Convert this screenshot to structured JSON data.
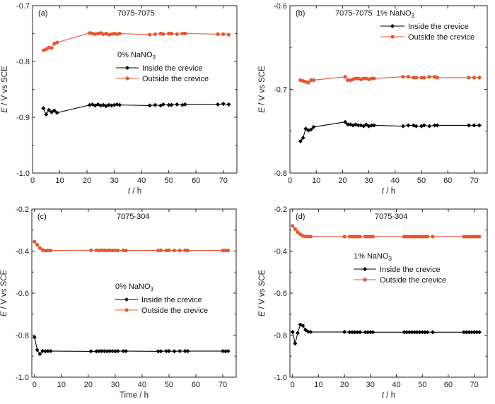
{
  "panels": [
    {
      "label": "(a)",
      "system": "7075-7075",
      "electrolyte": "0% NaNO",
      "electrolyte_sub": "3",
      "ylabel": "E / V vs SCE",
      "ylabel_ital": "E",
      "ylabel_rest": " / V vs SCE",
      "xlabel": "t / h",
      "xlabel_ital": "t",
      "xlabel_rest": " / h",
      "legend": [
        "Inside the crevice",
        "Outside the crevice"
      ]
    },
    {
      "label": "(b)",
      "system": "7075-7075",
      "electrolyte": "1% NaNO",
      "electrolyte_sub": "3",
      "ylabel": "E / V vs SCE",
      "ylabel_ital": "E",
      "ylabel_rest": " / V vs SCE",
      "xlabel": "t / h",
      "xlabel_ital": "t",
      "xlabel_rest": " / h",
      "legend": [
        "Inside the crevice",
        "Outside the crevice"
      ]
    },
    {
      "label": "(c)",
      "system": "7075-304",
      "electrolyte": "0% NaNO",
      "electrolyte_sub": "3",
      "ylabel": "E / V vs SCE",
      "ylabel_ital": "E",
      "ylabel_rest": " / V vs SCE",
      "xlabel": "Time / h",
      "xlabel_ital": "",
      "xlabel_rest": "Time / h",
      "legend": [
        "Inside the crevice",
        "Outside the crevice"
      ]
    },
    {
      "label": "(d)",
      "system": "7075-304",
      "electrolyte": "1% NaNO",
      "electrolyte_sub": "3",
      "ylabel": "E / V vs SCE",
      "ylabel_ital": "E",
      "ylabel_rest": " / V vs SCE",
      "xlabel": "t / h",
      "xlabel_ital": "t",
      "xlabel_rest": " / h",
      "legend": [
        "Inside the crevice",
        "Outside the crevice"
      ]
    }
  ],
  "colors": {
    "inside": "#000000",
    "outside": "#e8552a",
    "axis": "#222222"
  },
  "chart_data": [
    {
      "type": "line",
      "title": "(a) 7075-7075",
      "xlabel": "t / h",
      "ylabel": "E / V vs SCE",
      "xlim": [
        0,
        75
      ],
      "ylim": [
        -1.0,
        -0.7
      ],
      "xticks": [
        0,
        10,
        20,
        30,
        40,
        50,
        60,
        70
      ],
      "yticks": [
        -1.0,
        -0.9,
        -0.8,
        -0.7
      ],
      "series": [
        {
          "name": "Inside the crevice",
          "marker": "diamond",
          "x": [
            4,
            5,
            6,
            7,
            8,
            9,
            21,
            22,
            23,
            24,
            25,
            26,
            27,
            28,
            29,
            30,
            31,
            32,
            43,
            45,
            47,
            48,
            50,
            51,
            53,
            55,
            56,
            68,
            70,
            72
          ],
          "y": [
            -0.884,
            -0.895,
            -0.887,
            -0.891,
            -0.888,
            -0.892,
            -0.878,
            -0.877,
            -0.879,
            -0.877,
            -0.879,
            -0.878,
            -0.88,
            -0.878,
            -0.879,
            -0.878,
            -0.877,
            -0.878,
            -0.879,
            -0.878,
            -0.879,
            -0.877,
            -0.878,
            -0.878,
            -0.877,
            -0.878,
            -0.877,
            -0.877,
            -0.876,
            -0.877
          ]
        },
        {
          "name": "Outside the crevice",
          "marker": "circle",
          "x": [
            4,
            5,
            6,
            7,
            8,
            9,
            21,
            22,
            23,
            24,
            25,
            26,
            27,
            28,
            29,
            30,
            31,
            32,
            43,
            45,
            47,
            48,
            50,
            51,
            53,
            55,
            56,
            68,
            70,
            72
          ],
          "y": [
            -0.78,
            -0.778,
            -0.775,
            -0.776,
            -0.768,
            -0.766,
            -0.749,
            -0.75,
            -0.751,
            -0.75,
            -0.749,
            -0.751,
            -0.75,
            -0.752,
            -0.751,
            -0.75,
            -0.751,
            -0.75,
            -0.752,
            -0.751,
            -0.75,
            -0.751,
            -0.75,
            -0.75,
            -0.751,
            -0.75,
            -0.75,
            -0.751,
            -0.751,
            -0.752
          ]
        }
      ]
    },
    {
      "type": "line",
      "title": "(b) 7075-7075",
      "xlabel": "t / h",
      "ylabel": "E / V vs SCE",
      "xlim": [
        0,
        75
      ],
      "ylim": [
        -0.8,
        -0.6
      ],
      "xticks": [
        0,
        10,
        20,
        30,
        40,
        50,
        60,
        70
      ],
      "yticks": [
        -0.8,
        -0.7,
        -0.6
      ],
      "series": [
        {
          "name": "Inside the crevice",
          "marker": "diamond",
          "x": [
            4,
            5,
            6,
            7,
            8,
            9,
            21,
            22,
            23,
            24,
            25,
            26,
            27,
            28,
            29,
            30,
            31,
            32,
            43,
            45,
            47,
            48,
            50,
            51,
            53,
            55,
            56,
            68,
            70,
            72
          ],
          "y": [
            -0.762,
            -0.758,
            -0.747,
            -0.749,
            -0.748,
            -0.745,
            -0.739,
            -0.742,
            -0.742,
            -0.743,
            -0.742,
            -0.743,
            -0.743,
            -0.744,
            -0.742,
            -0.744,
            -0.743,
            -0.743,
            -0.744,
            -0.743,
            -0.743,
            -0.744,
            -0.744,
            -0.743,
            -0.744,
            -0.743,
            -0.743,
            -0.743,
            -0.743,
            -0.743
          ]
        },
        {
          "name": "Outside the crevice",
          "marker": "circle",
          "x": [
            4,
            5,
            6,
            7,
            8,
            9,
            21,
            22,
            23,
            24,
            25,
            26,
            27,
            28,
            29,
            30,
            31,
            32,
            43,
            45,
            47,
            48,
            50,
            51,
            53,
            55,
            56,
            68,
            70,
            72
          ],
          "y": [
            -0.689,
            -0.69,
            -0.691,
            -0.692,
            -0.689,
            -0.689,
            -0.685,
            -0.689,
            -0.689,
            -0.688,
            -0.687,
            -0.687,
            -0.688,
            -0.687,
            -0.687,
            -0.688,
            -0.687,
            -0.687,
            -0.685,
            -0.685,
            -0.686,
            -0.686,
            -0.686,
            -0.686,
            -0.685,
            -0.685,
            -0.686,
            -0.686,
            -0.686,
            -0.686
          ]
        }
      ]
    },
    {
      "type": "line",
      "title": "(c) 7075-304",
      "xlabel": "Time / h",
      "ylabel": "E / V vs SCE",
      "xlim": [
        -1,
        75
      ],
      "ylim": [
        -1.0,
        -0.2
      ],
      "xticks": [
        0,
        10,
        20,
        30,
        40,
        50,
        60,
        70
      ],
      "yticks": [
        -1.0,
        -0.8,
        -0.6,
        -0.4,
        -0.2
      ],
      "series": [
        {
          "name": "Inside the crevice",
          "marker": "diamond",
          "x": [
            0,
            1,
            2,
            3,
            4,
            5,
            6,
            21,
            23,
            24,
            25,
            26,
            27,
            28,
            29,
            30,
            31,
            33,
            34,
            46,
            47,
            49,
            50,
            52,
            54,
            56,
            57,
            70,
            71,
            72
          ],
          "y": [
            -0.81,
            -0.87,
            -0.89,
            -0.875,
            -0.877,
            -0.876,
            -0.876,
            -0.877,
            -0.877,
            -0.876,
            -0.876,
            -0.876,
            -0.877,
            -0.876,
            -0.876,
            -0.877,
            -0.876,
            -0.876,
            -0.876,
            -0.877,
            -0.877,
            -0.876,
            -0.876,
            -0.877,
            -0.876,
            -0.876,
            -0.876,
            -0.876,
            -0.877,
            -0.876
          ]
        },
        {
          "name": "Outside the crevice",
          "marker": "circle",
          "x": [
            0,
            1,
            2,
            3,
            4,
            5,
            6,
            21,
            23,
            24,
            25,
            26,
            27,
            28,
            29,
            30,
            31,
            33,
            34,
            46,
            47,
            49,
            50,
            52,
            54,
            56,
            57,
            70,
            71,
            72
          ],
          "y": [
            -0.355,
            -0.37,
            -0.385,
            -0.395,
            -0.398,
            -0.397,
            -0.397,
            -0.396,
            -0.396,
            -0.397,
            -0.396,
            -0.396,
            -0.397,
            -0.396,
            -0.397,
            -0.396,
            -0.397,
            -0.396,
            -0.397,
            -0.397,
            -0.396,
            -0.397,
            -0.396,
            -0.397,
            -0.397,
            -0.396,
            -0.397,
            -0.397,
            -0.397,
            -0.397
          ]
        }
      ]
    },
    {
      "type": "line",
      "title": "(d) 7075-304",
      "xlabel": "t / h",
      "ylabel": "E / V vs SCE",
      "xlim": [
        -1,
        75
      ],
      "ylim": [
        -1.0,
        -0.2
      ],
      "xticks": [
        0,
        10,
        20,
        30,
        40,
        50,
        60,
        70
      ],
      "yticks": [
        -1.0,
        -0.8,
        -0.6,
        -0.4,
        -0.2
      ],
      "series": [
        {
          "name": "Inside the crevice",
          "marker": "diamond",
          "x": [
            0,
            1,
            2,
            3,
            4,
            5,
            6,
            7,
            20,
            22,
            23,
            24,
            25,
            26,
            28,
            29,
            30,
            31,
            43,
            44,
            45,
            46,
            47,
            48,
            49,
            50,
            51,
            52,
            54,
            66,
            67,
            68,
            69,
            70,
            71,
            72
          ],
          "y": [
            -0.785,
            -0.84,
            -0.79,
            -0.75,
            -0.755,
            -0.775,
            -0.783,
            -0.785,
            -0.785,
            -0.786,
            -0.786,
            -0.786,
            -0.786,
            -0.786,
            -0.786,
            -0.786,
            -0.786,
            -0.786,
            -0.786,
            -0.786,
            -0.786,
            -0.786,
            -0.786,
            -0.786,
            -0.786,
            -0.786,
            -0.786,
            -0.786,
            -0.786,
            -0.786,
            -0.786,
            -0.786,
            -0.786,
            -0.786,
            -0.786,
            -0.786
          ]
        },
        {
          "name": "Outside the crevice",
          "marker": "circle",
          "x": [
            0,
            1,
            2,
            3,
            4,
            5,
            6,
            7,
            20,
            22,
            23,
            24,
            25,
            26,
            28,
            29,
            30,
            31,
            43,
            44,
            45,
            46,
            47,
            48,
            49,
            50,
            51,
            52,
            54,
            66,
            67,
            68,
            69,
            70,
            71,
            72
          ],
          "y": [
            -0.28,
            -0.295,
            -0.31,
            -0.32,
            -0.328,
            -0.33,
            -0.33,
            -0.331,
            -0.331,
            -0.331,
            -0.331,
            -0.331,
            -0.331,
            -0.331,
            -0.331,
            -0.331,
            -0.331,
            -0.331,
            -0.331,
            -0.331,
            -0.331,
            -0.331,
            -0.331,
            -0.331,
            -0.331,
            -0.331,
            -0.331,
            -0.331,
            -0.331,
            -0.331,
            -0.331,
            -0.331,
            -0.331,
            -0.331,
            -0.331,
            -0.331
          ]
        }
      ]
    }
  ]
}
